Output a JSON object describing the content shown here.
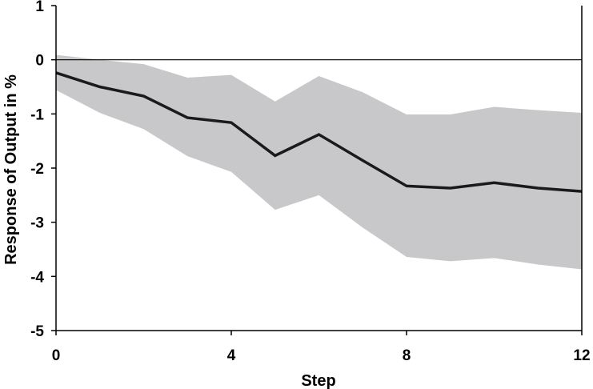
{
  "chart_data": {
    "type": "line",
    "title": "",
    "xlabel": "Step",
    "ylabel": "Response of Output in %",
    "xlim": [
      0,
      12
    ],
    "ylim": [
      -5,
      1
    ],
    "x_ticks": [
      0,
      4,
      8,
      12
    ],
    "y_ticks": [
      1,
      0,
      -1,
      -2,
      -3,
      -4,
      -5
    ],
    "x_tick_labels": [
      "0",
      "4",
      "8",
      "12"
    ],
    "y_tick_labels": [
      "1",
      "0",
      "-1",
      "-2",
      "-3",
      "-4",
      "-5"
    ],
    "grid": false,
    "zero_line": true,
    "x": [
      0,
      1,
      2,
      3,
      4,
      5,
      6,
      7,
      8,
      9,
      10,
      11,
      12
    ],
    "series": [
      {
        "values": [
          -0.24,
          -0.5,
          -0.67,
          -1.07,
          -1.16,
          -1.77,
          -1.38,
          -1.86,
          -2.33,
          -2.37,
          -2.27,
          -2.37,
          -2.43
        ]
      }
    ],
    "band_upper": [
      0.09,
      0.0,
      -0.08,
      -0.33,
      -0.28,
      -0.77,
      -0.3,
      -0.6,
      -1.01,
      -1.01,
      -0.87,
      -0.93,
      -0.98
    ],
    "band_lower": [
      -0.56,
      -0.98,
      -1.28,
      -1.78,
      -2.07,
      -2.77,
      -2.5,
      -3.1,
      -3.64,
      -3.72,
      -3.66,
      -3.78,
      -3.87
    ],
    "colors": {
      "line": "#1a1a1a",
      "band": "#c8c8ca",
      "axis": "#000000"
    }
  }
}
